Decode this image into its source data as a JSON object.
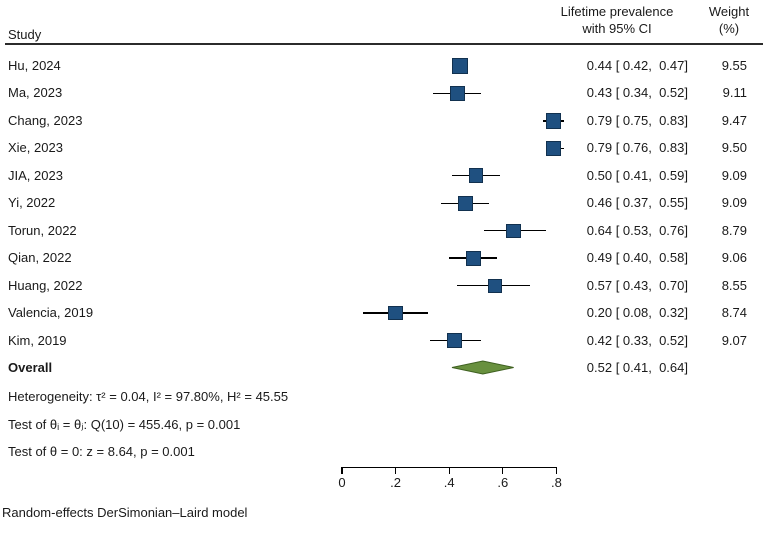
{
  "colors": {
    "square_fill": "#1f5080",
    "square_border": "#12314f",
    "diamond_fill": "#68903e",
    "diamond_border": "#3e6020",
    "line_color": "#000000",
    "rule_color": "#2b2b2b",
    "text_color": "#1a1a1a"
  },
  "header": {
    "study_label": "Study",
    "effect_label_line1": "Lifetime prevalence",
    "effect_label_line2": "with 95% CI",
    "weight_label_line1": "Weight",
    "weight_label_line2": "(%)"
  },
  "rows": [
    {
      "study": "Hu, 2024",
      "est": 0.44,
      "lo": 0.42,
      "hi": 0.47,
      "weight": 9.55,
      "ci_text": "0.44 [ 0.42,  0.47]",
      "weight_text": "9.55"
    },
    {
      "study": "Ma, 2023",
      "est": 0.43,
      "lo": 0.34,
      "hi": 0.52,
      "weight": 9.11,
      "ci_text": "0.43 [ 0.34,  0.52]",
      "weight_text": "9.11"
    },
    {
      "study": "Chang, 2023",
      "est": 0.79,
      "lo": 0.75,
      "hi": 0.83,
      "weight": 9.47,
      "ci_text": "0.79 [ 0.75,  0.83]",
      "weight_text": "9.47"
    },
    {
      "study": "Xie, 2023",
      "est": 0.79,
      "lo": 0.76,
      "hi": 0.83,
      "weight": 9.5,
      "ci_text": "0.79 [ 0.76,  0.83]",
      "weight_text": "9.50"
    },
    {
      "study": "JIA, 2023",
      "est": 0.5,
      "lo": 0.41,
      "hi": 0.59,
      "weight": 9.09,
      "ci_text": "0.50 [ 0.41,  0.59]",
      "weight_text": "9.09"
    },
    {
      "study": "Yi, 2022",
      "est": 0.46,
      "lo": 0.37,
      "hi": 0.55,
      "weight": 9.09,
      "ci_text": "0.46 [ 0.37,  0.55]",
      "weight_text": "9.09"
    },
    {
      "study": "Torun, 2022",
      "est": 0.64,
      "lo": 0.53,
      "hi": 0.76,
      "weight": 8.79,
      "ci_text": "0.64 [ 0.53,  0.76]",
      "weight_text": "8.79"
    },
    {
      "study": "Qian, 2022",
      "est": 0.49,
      "lo": 0.4,
      "hi": 0.58,
      "weight": 9.06,
      "ci_text": "0.49 [ 0.40,  0.58]",
      "weight_text": "9.06"
    },
    {
      "study": "Huang, 2022",
      "est": 0.57,
      "lo": 0.43,
      "hi": 0.7,
      "weight": 8.55,
      "ci_text": "0.57 [ 0.43,  0.70]",
      "weight_text": "8.55"
    },
    {
      "study": "Valencia, 2019",
      "est": 0.2,
      "lo": 0.08,
      "hi": 0.32,
      "weight": 8.74,
      "ci_text": "0.20 [ 0.08,  0.32]",
      "weight_text": "8.74"
    },
    {
      "study": "Kim, 2019",
      "est": 0.42,
      "lo": 0.33,
      "hi": 0.52,
      "weight": 9.07,
      "ci_text": "0.42 [ 0.33,  0.52]",
      "weight_text": "9.07"
    }
  ],
  "overall": {
    "label": "Overall",
    "est": 0.52,
    "lo": 0.41,
    "hi": 0.64,
    "ci_text": "0.52 [ 0.41,  0.64]"
  },
  "stats": {
    "heterogeneity": "Heterogeneity: τ² = 0.04, I² = 97.80%, H² = 45.55",
    "test_theta_ij": "Test of θᵢ = θⱼ: Q(10) = 455.46, p = 0.001",
    "test_theta_zero": "Test of θ = 0: z = 8.64, p = 0.001"
  },
  "axis": {
    "min": 0,
    "max": 0.8,
    "tick_values": [
      0,
      0.2,
      0.4,
      0.6,
      0.8
    ],
    "tick_labels": [
      "0",
      ".2",
      ".4",
      ".6",
      ".8"
    ]
  },
  "footnote": "Random-effects DerSimonian–Laird model",
  "chart_data": {
    "type": "scatter",
    "subtype": "forest-plot",
    "title": "Lifetime prevalence with 95% CI",
    "xlabel": "",
    "xlim": [
      0,
      0.8
    ],
    "x_ticks": [
      "0",
      ".2",
      ".4",
      ".6",
      ".8"
    ],
    "grid": false,
    "legend": false,
    "categories": [
      "Hu, 2024",
      "Ma, 2023",
      "Chang, 2023",
      "Xie, 2023",
      "JIA, 2023",
      "Yi, 2022",
      "Torun, 2022",
      "Qian, 2022",
      "Huang, 2022",
      "Valencia, 2019",
      "Kim, 2019"
    ],
    "series": [
      {
        "name": "estimate",
        "values": [
          0.44,
          0.43,
          0.79,
          0.79,
          0.5,
          0.46,
          0.64,
          0.49,
          0.57,
          0.2,
          0.42
        ]
      },
      {
        "name": "ci_lower",
        "values": [
          0.42,
          0.34,
          0.75,
          0.76,
          0.41,
          0.37,
          0.53,
          0.4,
          0.43,
          0.08,
          0.33
        ]
      },
      {
        "name": "ci_upper",
        "values": [
          0.47,
          0.52,
          0.83,
          0.83,
          0.59,
          0.55,
          0.76,
          0.58,
          0.7,
          0.32,
          0.52
        ]
      },
      {
        "name": "weight_pct",
        "values": [
          9.55,
          9.11,
          9.47,
          9.5,
          9.09,
          9.09,
          8.79,
          9.06,
          8.55,
          8.74,
          9.07
        ]
      }
    ],
    "overall": {
      "label": "Overall",
      "estimate": 0.52,
      "ci_lower": 0.41,
      "ci_upper": 0.64
    },
    "heterogeneity": {
      "tau2": 0.04,
      "I2_pct": 97.8,
      "H2": 45.55,
      "Q": 455.46,
      "Q_df": 10,
      "p_Q": 0.001,
      "z": 8.64,
      "p_z": 0.001
    },
    "model": "Random-effects DerSimonian–Laird model"
  }
}
